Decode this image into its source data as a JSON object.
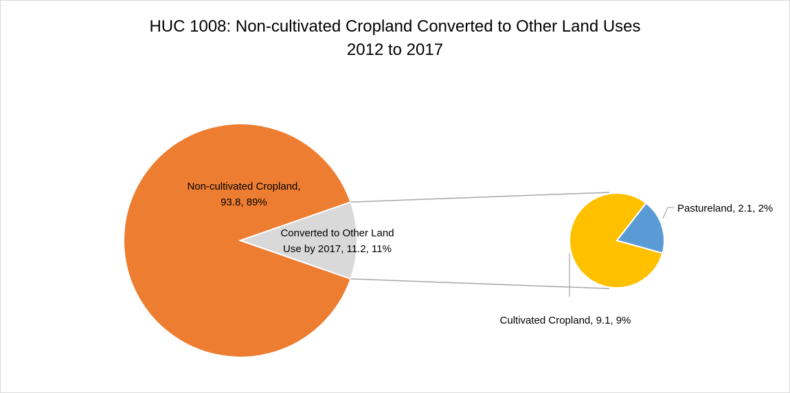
{
  "chart_data": {
    "type": "pie",
    "title": "HUC 1008: Non-cultivated Cropland Converted to Other Land Uses",
    "subtitle": "2012 to 2017",
    "main_pie": {
      "slices": [
        {
          "label_line1": "Non-cultivated Cropland,",
          "label_line2": "93.8, 89%",
          "category": "Non-cultivated Cropland",
          "value": 93.8,
          "percent": 89,
          "color": "#ed7d31"
        },
        {
          "label_line1": "Converted to Other Land",
          "label_line2": "Use by 2017, 11.2, 11%",
          "category": "Converted to Other Land Use by 2017",
          "value": 11.2,
          "percent": 11,
          "color": "#d9d9d9"
        }
      ]
    },
    "secondary_pie": {
      "slices": [
        {
          "label": "Pastureland, 2.1, 2%",
          "category": "Pastureland",
          "value": 2.1,
          "percent": 2,
          "color": "#5b9bd5"
        },
        {
          "label": "Cultivated Cropland, 9.1, 9%",
          "category": "Cultivated Cropland",
          "value": 9.1,
          "percent": 9,
          "color": "#ffc000"
        }
      ]
    },
    "connector_color": "#a6a6a6"
  }
}
